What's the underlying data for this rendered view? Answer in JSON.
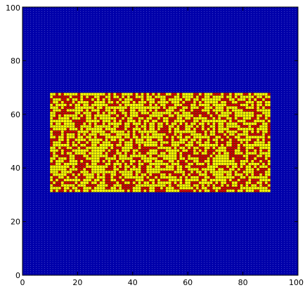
{
  "chart_data": {
    "type": "heatmap",
    "title": "",
    "xlabel": "",
    "ylabel": "",
    "xlim": [
      0,
      100
    ],
    "ylim": [
      0,
      100
    ],
    "grid_cell_size": 1,
    "xticks": [
      0,
      20,
      40,
      60,
      80,
      100
    ],
    "yticks": [
      0,
      20,
      40,
      60,
      80,
      100
    ],
    "grid_lines": true,
    "regions": [
      {
        "x_range": [
          0,
          100
        ],
        "y_range": [
          0,
          100
        ],
        "state": "empty"
      },
      {
        "x_range": [
          10,
          90
        ],
        "y_range": [
          31,
          68
        ],
        "state": "mixed-occupied"
      }
    ],
    "occupied_state_mix": {
      "yellow": 0.62,
      "red": 0.38
    },
    "colors": {
      "empty": "#0000aa",
      "yellow": "#ffff00",
      "red": "#cc0000",
      "cell_line_dark": "#333300",
      "grid_line_light": "#c8c8ff",
      "frame": "#000000"
    }
  }
}
